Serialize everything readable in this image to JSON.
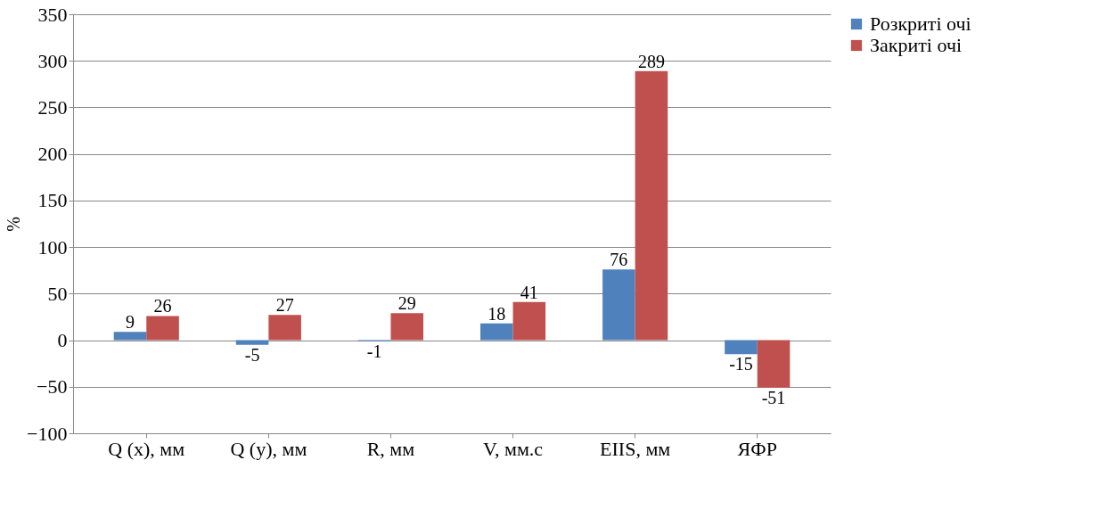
{
  "chart_data": {
    "type": "bar",
    "ylabel": "%",
    "categories": [
      "Q (x), мм",
      "Q (y), мм",
      "R, мм",
      "V, мм.с",
      "EIIS, мм",
      "ЯФР"
    ],
    "series": [
      {
        "name": "Розкриті очі",
        "color": "#4f81bd",
        "values": [
          9,
          -5,
          -1,
          18,
          76,
          -15
        ]
      },
      {
        "name": "Закриті очі",
        "color": "#c0504d",
        "values": [
          26,
          27,
          29,
          41,
          289,
          -51
        ]
      }
    ],
    "ylim": [
      -100,
      350
    ],
    "yticks": [
      -100,
      -50,
      0,
      50,
      100,
      150,
      200,
      250,
      300,
      350
    ],
    "grid": "y",
    "legend": "right",
    "data_labels": true
  }
}
